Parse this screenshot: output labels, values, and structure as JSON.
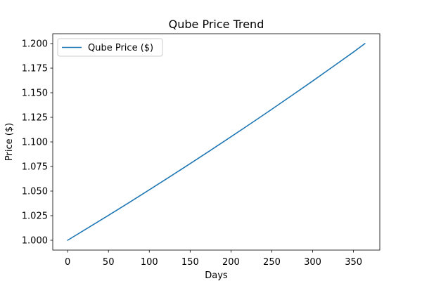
{
  "chart_data": {
    "type": "line",
    "title": "Qube Price Trend",
    "xlabel": "Days",
    "ylabel": "Price ($)",
    "xlim": [
      -18.2,
      382.2
    ],
    "ylim": [
      0.99,
      1.21
    ],
    "x_ticks": [
      0,
      50,
      100,
      150,
      200,
      250,
      300,
      350
    ],
    "y_ticks": [
      1.0,
      1.025,
      1.05,
      1.075,
      1.1,
      1.125,
      1.15,
      1.175,
      1.2
    ],
    "x_tick_labels": [
      "0",
      "50",
      "100",
      "150",
      "200",
      "250",
      "300",
      "350"
    ],
    "y_tick_labels": [
      "1.000",
      "1.025",
      "1.050",
      "1.075",
      "1.100",
      "1.125",
      "1.150",
      "1.175",
      "1.200"
    ],
    "grid": false,
    "legend_position": "top-left",
    "series": [
      {
        "name": "Qube Price ($)",
        "color": "#1f77b4",
        "x": [
          0,
          25,
          50,
          75,
          100,
          125,
          150,
          175,
          200,
          225,
          250,
          275,
          300,
          325,
          350,
          364
        ],
        "y": [
          1.0,
          1.0126,
          1.0253,
          1.0382,
          1.0513,
          1.0645,
          1.0779,
          1.0915,
          1.1052,
          1.1191,
          1.1332,
          1.1475,
          1.1619,
          1.1766,
          1.1914,
          1.2
        ]
      }
    ]
  }
}
